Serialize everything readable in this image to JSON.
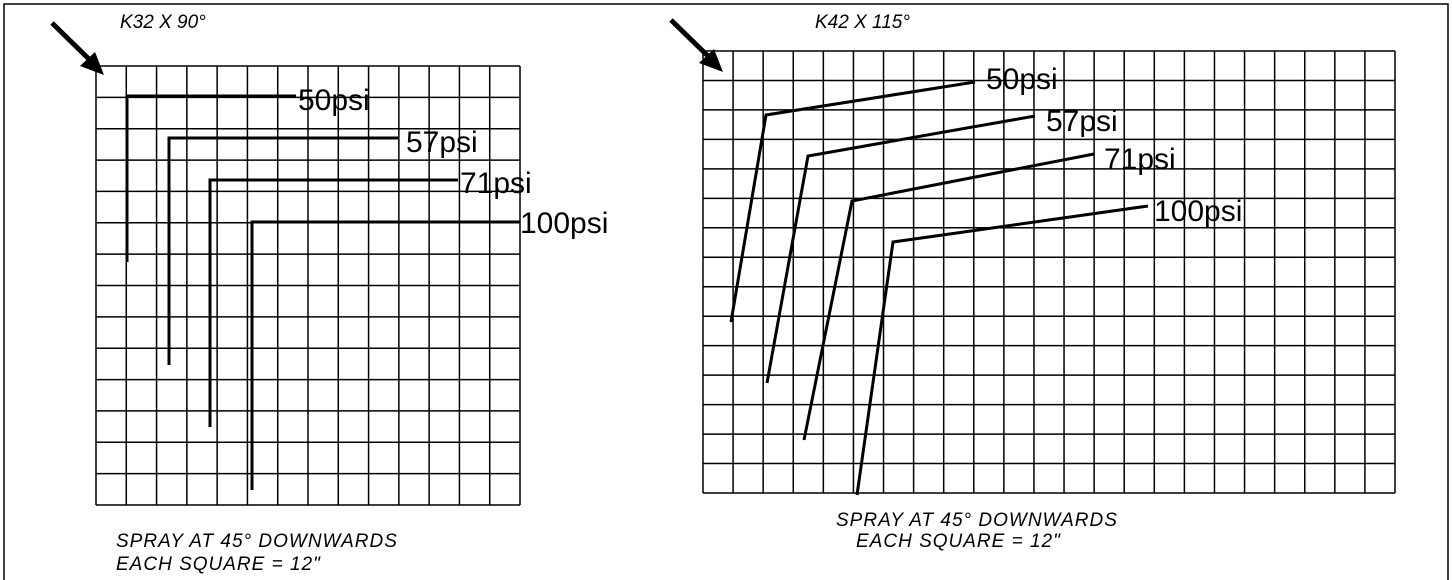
{
  "panels": [
    {
      "title": "K32 X 90°",
      "curves": [
        "50psi",
        "57psi",
        "71psi",
        "100psi"
      ],
      "notes": [
        "SPRAY AT 45° DOWNWARDS",
        "EACH SQUARE = 12\""
      ]
    },
    {
      "title": "K42 X 115°",
      "curves": [
        "50psi",
        "57psi",
        "71psi",
        "100psi"
      ],
      "notes": [
        "SPRAY AT 45° DOWNWARDS",
        "EACH SQUARE = 12\""
      ]
    }
  ]
}
